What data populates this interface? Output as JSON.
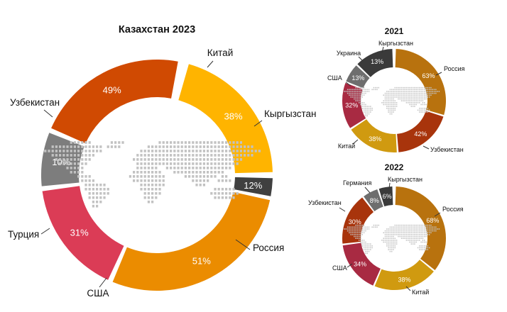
{
  "chart_data": [
    {
      "type": "pie",
      "variant": "donut",
      "title": "Казахстан 2023",
      "slices": [
        {
          "label": "Китай",
          "value_label": "38%",
          "color": "#FFB400"
        },
        {
          "label": "Кыргызстан",
          "value_label": "12%",
          "color": "#404040"
        },
        {
          "label": "Россия",
          "value_label": "51%",
          "color": "#EB8C00"
        },
        {
          "label": "США",
          "value_label": "31%",
          "color": "#DB3C56"
        },
        {
          "label": "Турция",
          "value_label": "10%",
          "color": "#7D7D7D"
        },
        {
          "label": "Узбекистан",
          "value_label": "49%",
          "color": "#D04A02"
        }
      ]
    },
    {
      "type": "pie",
      "variant": "donut",
      "title": "2021",
      "slices": [
        {
          "label": "Россия",
          "value_label": "63%",
          "color": "#B8720E"
        },
        {
          "label": "Узбекистан",
          "value_label": "42%",
          "color": "#A8340C"
        },
        {
          "label": "Китай",
          "value_label": "38%",
          "color": "#D09A10"
        },
        {
          "label": "США",
          "value_label": "32%",
          "color": "#A82A42"
        },
        {
          "label": "Украина",
          "value_label": "13%",
          "color": "#6E6E6E"
        },
        {
          "label": "Кыргызстан",
          "value_label": "13%",
          "color": "#3A3A3A"
        }
      ]
    },
    {
      "type": "pie",
      "variant": "donut",
      "title": "2022",
      "slices": [
        {
          "label": "Россия",
          "value_label": "68%",
          "color": "#B8720E"
        },
        {
          "label": "Китай",
          "value_label": "38%",
          "color": "#D09A10"
        },
        {
          "label": "США",
          "value_label": "34%",
          "color": "#A82A42"
        },
        {
          "label": "Узбекистан",
          "value_label": "30%",
          "color": "#A8340C"
        },
        {
          "label": "Германия",
          "value_label": "8%",
          "color": "#6E6E6E"
        },
        {
          "label": "Кыргызстан",
          "value_label": "6%",
          "color": "#3A3A3A"
        }
      ]
    }
  ]
}
